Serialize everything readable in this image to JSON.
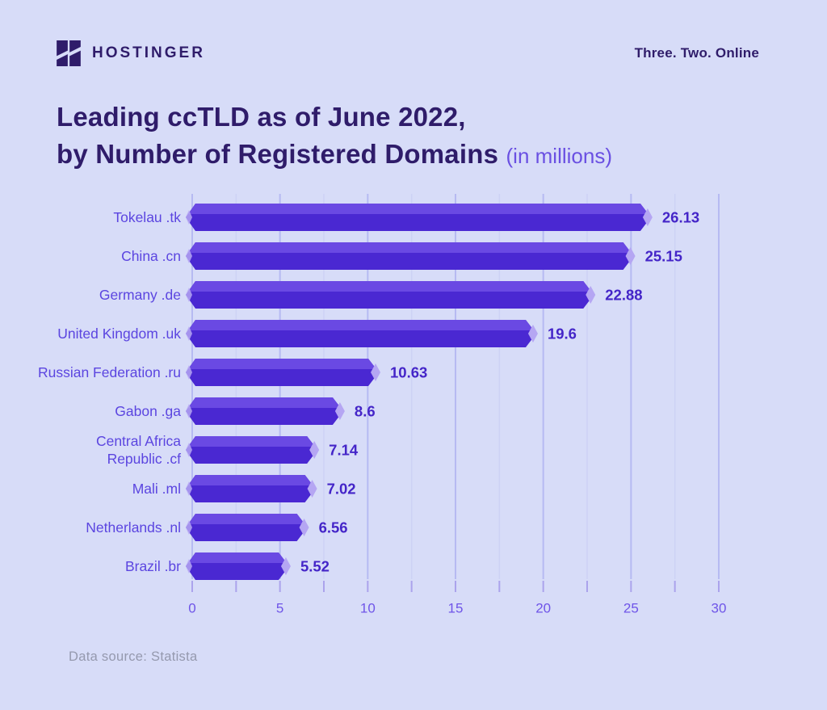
{
  "header": {
    "brand": "HOSTINGER",
    "tagline": "Three. Two. Online"
  },
  "title": {
    "line1": "Leading ccTLD as of June 2022,",
    "line2": "by Number of Registered Domains",
    "suffix": "(in millions)"
  },
  "footer": {
    "source": "Data source: Statista"
  },
  "chart_data": {
    "type": "bar",
    "orientation": "horizontal",
    "title": "Leading ccTLD as of June 2022, by Number of Registered Domains",
    "units": "in millions",
    "categories": [
      "Tokelau .tk",
      "China .cn",
      "Germany .de",
      "United Kingdom .uk",
      "Russian Federation .ru",
      "Gabon .ga",
      "Central Africa Republic .cf",
      "Mali .ml",
      "Netherlands .nl",
      "Brazil .br"
    ],
    "label_lines": [
      [
        "Tokelau .tk"
      ],
      [
        "China .cn"
      ],
      [
        "Germany .de"
      ],
      [
        "United Kingdom .uk"
      ],
      [
        "Russian Federation .ru"
      ],
      [
        "Gabon .ga"
      ],
      [
        "Central Africa",
        "Republic .cf"
      ],
      [
        "Mali .ml"
      ],
      [
        "Netherlands .nl"
      ],
      [
        "Brazil .br"
      ]
    ],
    "values": [
      26.13,
      25.15,
      22.88,
      19.6,
      10.63,
      8.6,
      7.14,
      7.02,
      6.56,
      5.52
    ],
    "value_labels": [
      "26.13",
      "25.15",
      "22.88",
      "19.6",
      "10.63",
      "8.6",
      "7.14",
      "7.02",
      "6.56",
      "5.52"
    ],
    "x_ticks": [
      0,
      5,
      10,
      15,
      20,
      25,
      30
    ],
    "x_tick_labels": [
      "0",
      "5",
      "10",
      "15",
      "20",
      "25",
      "30"
    ],
    "xlim": [
      0,
      30
    ],
    "grid_step": 2.5,
    "grid": "on",
    "legend": "none",
    "colors": {
      "background": "#D7DCF8",
      "bar_front": "#4A28D2",
      "bar_top": "#6A49E3",
      "bar_tip": "#B5A6F3",
      "grid_minor": "#CDD2F5",
      "grid_major": "#B6BAF2",
      "axis_tick": "#ABA3EC",
      "axis_label": "#6F55E8",
      "category_label": "#5B45E0",
      "value_label": "#4425C8",
      "title": "#2F1C6A",
      "title_accent": "#6A50E2",
      "footer": "#9599AE",
      "logo": "#2F1C6A"
    }
  }
}
